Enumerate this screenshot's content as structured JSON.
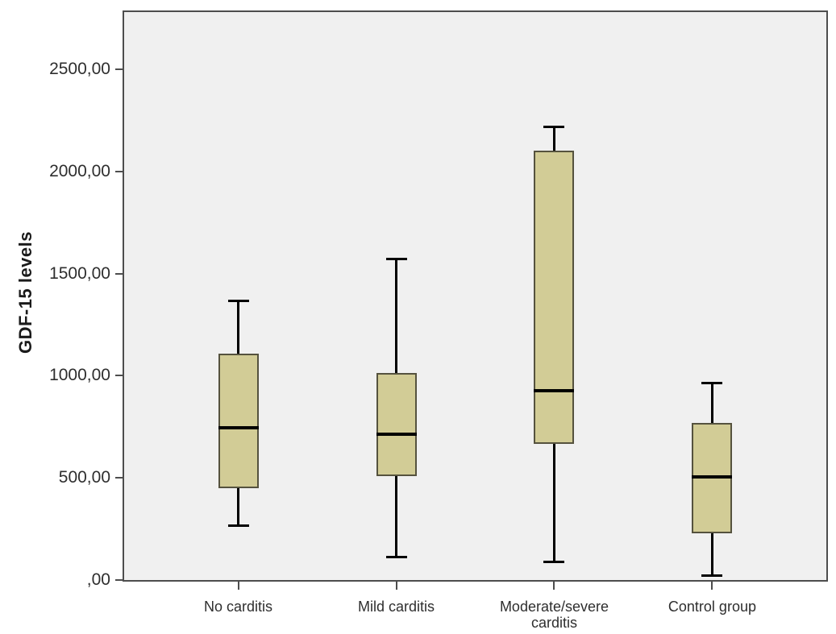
{
  "figure": {
    "background": "#ffffff",
    "plot_background": "#f0f0f0",
    "plot_border_color": "#4d4d4d",
    "text_color": "#2e2e2e"
  },
  "chart_data": {
    "type": "boxplot",
    "title": "",
    "xlabel": "",
    "ylabel": "GDF-15 levels",
    "ylim": [
      0,
      2780
    ],
    "grid": false,
    "legend": false,
    "yticks": [
      {
        "value": 0,
        "label": ",00"
      },
      {
        "value": 500,
        "label": "500,00"
      },
      {
        "value": 1000,
        "label": "1000,00"
      },
      {
        "value": 1500,
        "label": "1500,00"
      },
      {
        "value": 2000,
        "label": "2000,00"
      },
      {
        "value": 2500,
        "label": "2500,00"
      }
    ],
    "categories": [
      "No carditis",
      "Mild carditis",
      "Moderate/severe carditis",
      "Control group"
    ],
    "boxes": [
      {
        "category": "No carditis",
        "whisker_low": 265,
        "q1": 450,
        "median": 745,
        "q3": 1110,
        "whisker_high": 1370
      },
      {
        "category": "Mild carditis",
        "whisker_low": 110,
        "q1": 510,
        "median": 715,
        "q3": 1015,
        "whisker_high": 1575
      },
      {
        "category": "Moderate/severe carditis",
        "whisker_low": 85,
        "q1": 665,
        "median": 925,
        "q3": 2100,
        "whisker_high": 2220
      },
      {
        "category": "Control group",
        "whisker_low": 20,
        "q1": 230,
        "median": 505,
        "q3": 770,
        "whisker_high": 965
      }
    ],
    "box_fill": "#d2cc96",
    "box_border": "#55523e",
    "median_color": "#000000",
    "whisker_color": "#000000"
  }
}
